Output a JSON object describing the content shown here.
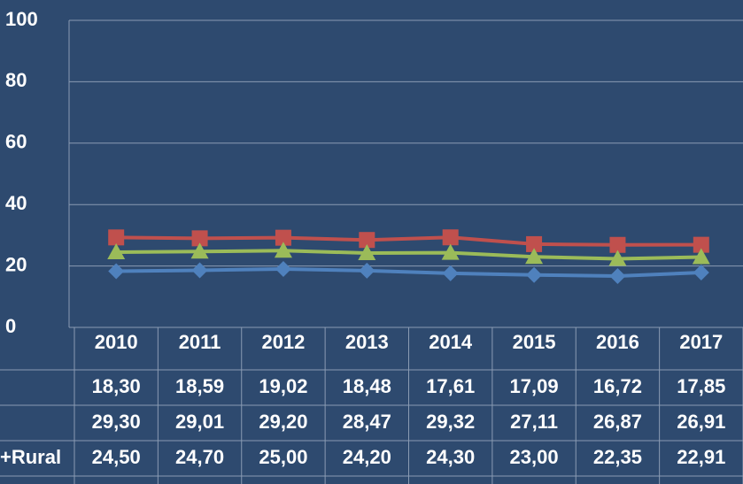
{
  "chart_data": {
    "type": "line",
    "categories": [
      "2010",
      "2011",
      "2012",
      "2013",
      "2014",
      "2015",
      "2016",
      "2017"
    ],
    "series": [
      {
        "name": null,
        "color": "#4f81bd",
        "marker": "diamond",
        "values": [
          18.3,
          18.59,
          19.02,
          18.48,
          17.61,
          17.09,
          16.72,
          17.85
        ],
        "value_labels": [
          "18,30",
          "18,59",
          "19,02",
          "18,48",
          "17,61",
          "17,09",
          "16,72",
          "17,85"
        ]
      },
      {
        "name": null,
        "color": "#c0504d",
        "marker": "square",
        "values": [
          29.3,
          29.01,
          29.2,
          28.47,
          29.32,
          27.11,
          26.87,
          26.91
        ],
        "value_labels": [
          "29,30",
          "29,01",
          "29,20",
          "28,47",
          "29,32",
          "27,11",
          "26,87",
          "26,91"
        ]
      },
      {
        "name": "+Rural",
        "color": "#9bbb59",
        "marker": "triangle",
        "values": [
          24.5,
          24.7,
          25.0,
          24.2,
          24.3,
          23.0,
          22.35,
          22.91
        ],
        "value_labels": [
          "24,50",
          "24,70",
          "25,00",
          "24,20",
          "24,30",
          "23,00",
          "22,35",
          "22,91"
        ]
      }
    ],
    "ylim": [
      0,
      100
    ],
    "yticks": [
      0,
      20,
      40,
      60,
      80,
      100
    ],
    "grid": true
  }
}
